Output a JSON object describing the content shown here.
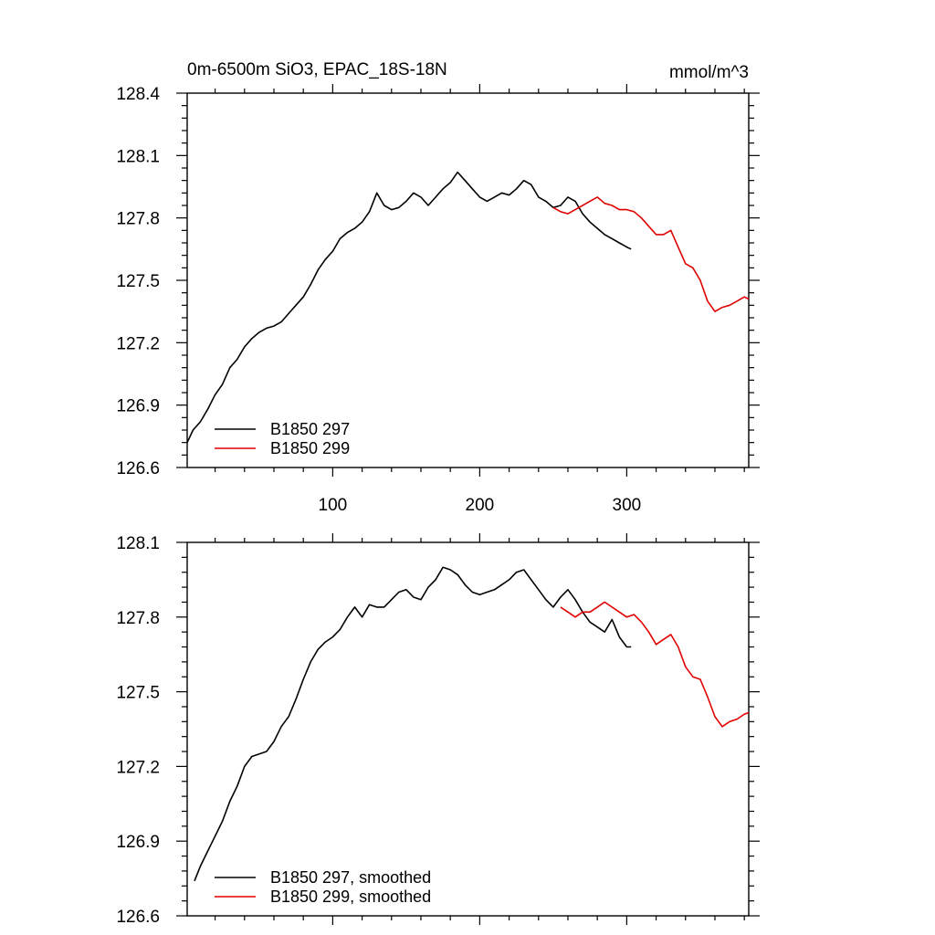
{
  "chart_data": [
    {
      "type": "line",
      "title": "0m-6500m SiO3, EPAC_18S-18N",
      "units": "mmol/m^3",
      "xlabel": "",
      "ylabel": "",
      "xlim": [
        1,
        383
      ],
      "ylim": [
        126.6,
        128.4
      ],
      "x_ticks": [
        100,
        200,
        300
      ],
      "x_tick_labels": [
        "100",
        "200",
        "300"
      ],
      "y_ticks": [
        126.6,
        126.9,
        127.2,
        127.5,
        127.8,
        128.1,
        128.4
      ],
      "y_tick_labels": [
        "126.6",
        "126.9",
        "127.2",
        "127.5",
        "127.8",
        "128.1",
        "128.4"
      ],
      "grid": false,
      "legend_position": "bottom-left",
      "series": [
        {
          "name": "B1850 297",
          "color": "#000000",
          "x": [
            1,
            5,
            10,
            15,
            20,
            25,
            30,
            35,
            40,
            45,
            50,
            55,
            60,
            65,
            70,
            75,
            80,
            85,
            90,
            95,
            100,
            105,
            110,
            115,
            120,
            125,
            130,
            135,
            140,
            145,
            150,
            155,
            160,
            165,
            170,
            175,
            180,
            185,
            190,
            195,
            200,
            205,
            210,
            215,
            220,
            225,
            230,
            235,
            240,
            245,
            250,
            255,
            260,
            265,
            270,
            275,
            280,
            285,
            290,
            295,
            300,
            303
          ],
          "y": [
            126.72,
            126.78,
            126.82,
            126.88,
            126.95,
            127.0,
            127.08,
            127.12,
            127.18,
            127.22,
            127.25,
            127.27,
            127.28,
            127.3,
            127.34,
            127.38,
            127.42,
            127.48,
            127.55,
            127.6,
            127.64,
            127.7,
            127.73,
            127.75,
            127.78,
            127.83,
            127.92,
            127.86,
            127.84,
            127.85,
            127.88,
            127.92,
            127.9,
            127.86,
            127.9,
            127.94,
            127.97,
            128.02,
            127.98,
            127.94,
            127.9,
            127.88,
            127.9,
            127.92,
            127.91,
            127.94,
            127.98,
            127.96,
            127.9,
            127.88,
            127.85,
            127.86,
            127.9,
            127.88,
            127.82,
            127.78,
            127.75,
            127.72,
            127.7,
            127.68,
            127.66,
            127.65
          ]
        },
        {
          "name": "B1850 299",
          "color": "#e00000",
          "x": [
            250,
            255,
            260,
            265,
            270,
            275,
            280,
            285,
            290,
            295,
            300,
            305,
            310,
            315,
            320,
            325,
            330,
            335,
            340,
            345,
            350,
            355,
            360,
            365,
            370,
            375,
            380,
            383
          ],
          "y": [
            127.85,
            127.83,
            127.82,
            127.84,
            127.86,
            127.88,
            127.9,
            127.87,
            127.86,
            127.84,
            127.84,
            127.83,
            127.8,
            127.76,
            127.72,
            127.72,
            127.74,
            127.66,
            127.58,
            127.56,
            127.5,
            127.4,
            127.35,
            127.37,
            127.38,
            127.4,
            127.42,
            127.41
          ]
        }
      ]
    },
    {
      "type": "line",
      "title": "",
      "xlabel": "",
      "ylabel": "",
      "xlim": [
        1,
        383
      ],
      "ylim": [
        126.6,
        128.1
      ],
      "x_ticks": [
        100,
        200,
        300
      ],
      "x_tick_labels": [],
      "y_ticks": [
        126.6,
        126.9,
        127.2,
        127.5,
        127.8,
        128.1
      ],
      "y_tick_labels": [
        "126.6",
        "126.9",
        "127.2",
        "127.5",
        "127.8",
        "128.1"
      ],
      "grid": false,
      "legend_position": "bottom-left",
      "series": [
        {
          "name": "B1850 297, smoothed",
          "color": "#000000",
          "x": [
            6,
            10,
            15,
            20,
            25,
            30,
            35,
            40,
            45,
            50,
            55,
            60,
            65,
            70,
            75,
            80,
            85,
            90,
            95,
            100,
            105,
            110,
            115,
            120,
            125,
            130,
            135,
            140,
            145,
            150,
            155,
            160,
            165,
            170,
            175,
            180,
            185,
            190,
            195,
            200,
            205,
            210,
            215,
            220,
            225,
            230,
            235,
            240,
            245,
            250,
            255,
            260,
            265,
            270,
            275,
            280,
            285,
            290,
            295,
            300,
            303
          ],
          "y": [
            126.74,
            126.8,
            126.86,
            126.92,
            126.98,
            127.06,
            127.12,
            127.2,
            127.24,
            127.25,
            127.26,
            127.3,
            127.36,
            127.4,
            127.47,
            127.55,
            127.62,
            127.67,
            127.7,
            127.72,
            127.75,
            127.8,
            127.84,
            127.8,
            127.85,
            127.84,
            127.84,
            127.87,
            127.9,
            127.91,
            127.88,
            127.87,
            127.92,
            127.95,
            128.0,
            127.99,
            127.97,
            127.93,
            127.9,
            127.89,
            127.9,
            127.91,
            127.93,
            127.95,
            127.98,
            127.99,
            127.95,
            127.91,
            127.87,
            127.84,
            127.88,
            127.91,
            127.87,
            127.82,
            127.78,
            127.76,
            127.74,
            127.79,
            127.72,
            127.68,
            127.68
          ]
        },
        {
          "name": "B1850 299, smoothed",
          "color": "#e00000",
          "x": [
            255,
            260,
            265,
            270,
            275,
            280,
            285,
            290,
            295,
            300,
            305,
            310,
            315,
            320,
            325,
            330,
            335,
            340,
            345,
            350,
            355,
            360,
            365,
            370,
            375,
            380,
            385
          ],
          "y": [
            127.84,
            127.82,
            127.8,
            127.82,
            127.82,
            127.84,
            127.86,
            127.84,
            127.82,
            127.8,
            127.81,
            127.78,
            127.74,
            127.69,
            127.71,
            127.73,
            127.68,
            127.6,
            127.56,
            127.55,
            127.48,
            127.4,
            127.36,
            127.38,
            127.39,
            127.41,
            127.42
          ]
        }
      ]
    }
  ]
}
